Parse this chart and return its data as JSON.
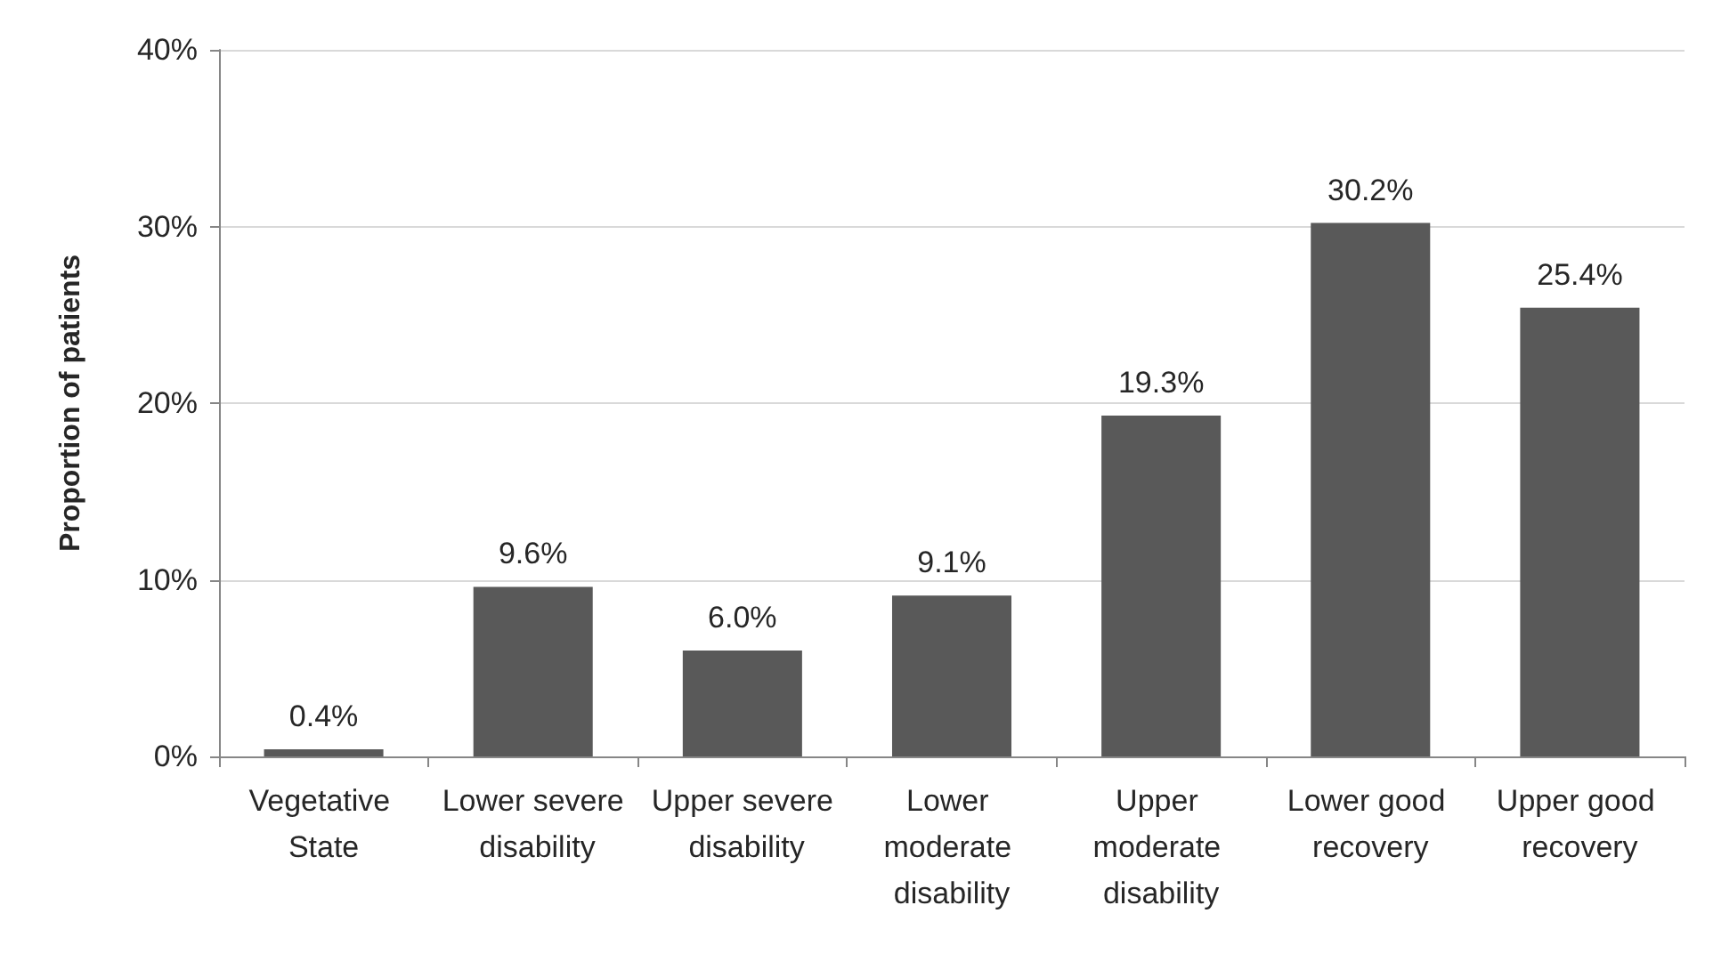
{
  "chart_data": {
    "type": "bar",
    "ylabel": "Proportion of patients",
    "categories": [
      "Vegetative State",
      "Lower severe disability",
      "Upper severe disability",
      "Lower moderate disability",
      "Upper moderate disability",
      "Lower good recovery",
      "Upper good recovery"
    ],
    "values": [
      0.4,
      9.6,
      6.0,
      9.1,
      19.3,
      30.2,
      25.4
    ],
    "value_labels": [
      "0.4%",
      "9.6%",
      "6.0%",
      "9.1%",
      "19.3%",
      "30.2%",
      "25.4%"
    ],
    "color": "#595959",
    "ylim": [
      0,
      40
    ],
    "yticks": [
      {
        "value": 0,
        "label": "0%"
      },
      {
        "value": 10,
        "label": "10%"
      },
      {
        "value": 20,
        "label": "20%"
      },
      {
        "value": 30,
        "label": "30%"
      },
      {
        "value": 40,
        "label": "40%"
      }
    ],
    "grid": "y"
  }
}
